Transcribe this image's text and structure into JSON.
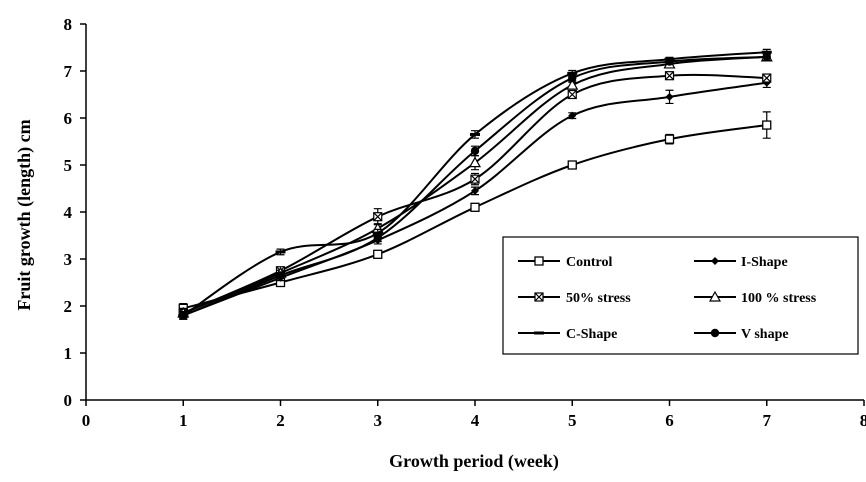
{
  "chart_data": {
    "type": "line",
    "title": "",
    "xlabel": "Growth period (week)",
    "ylabel": "Fruit growth (length) cm",
    "xlim": [
      0,
      8
    ],
    "ylim": [
      0,
      8
    ],
    "x_ticks": [
      "0",
      "1",
      "2",
      "3",
      "4",
      "5",
      "6",
      "7",
      "8"
    ],
    "y_ticks": [
      "0",
      "1",
      "2",
      "3",
      "4",
      "5",
      "6",
      "7",
      "8"
    ],
    "grid": false,
    "legend_position": "lower-right",
    "x": [
      1,
      2,
      3,
      4,
      5,
      6,
      7
    ],
    "series": [
      {
        "name": "Control",
        "marker": "open-square",
        "values": [
          1.95,
          2.5,
          3.1,
          4.1,
          5.0,
          5.55,
          5.85
        ],
        "errors": [
          0.1,
          0.08,
          0.08,
          0.05,
          0.05,
          0.1,
          0.28
        ]
      },
      {
        "name": "I-Shape",
        "marker": "diamond",
        "values": [
          1.8,
          2.6,
          3.4,
          4.45,
          6.05,
          6.45,
          6.75
        ],
        "errors": [
          0.08,
          0.06,
          0.08,
          0.08,
          0.06,
          0.14,
          0.1
        ]
      },
      {
        "name": "50% stress",
        "marker": "x-square",
        "values": [
          1.85,
          2.75,
          3.9,
          4.7,
          6.5,
          6.9,
          6.85
        ],
        "errors": [
          0.1,
          0.06,
          0.17,
          0.12,
          0.06,
          0.04,
          0.06
        ]
      },
      {
        "name": "100 % stress",
        "marker": "open-triangle",
        "values": [
          1.85,
          2.7,
          3.65,
          5.05,
          6.7,
          7.15,
          7.3
        ],
        "errors": [
          0.08,
          0.06,
          0.1,
          0.15,
          0.06,
          0.04,
          0.06
        ]
      },
      {
        "name": "C-Shape",
        "marker": "dash",
        "values": [
          1.8,
          3.15,
          3.55,
          5.65,
          6.95,
          7.25,
          7.4
        ],
        "errors": [
          0.08,
          0.06,
          0.08,
          0.08,
          0.06,
          0.04,
          0.06
        ]
      },
      {
        "name": "V shape",
        "marker": "filled-circle",
        "values": [
          1.8,
          2.65,
          3.45,
          5.3,
          6.85,
          7.2,
          7.3
        ],
        "errors": [
          0.08,
          0.06,
          0.08,
          0.1,
          0.06,
          0.04,
          0.08
        ]
      }
    ]
  }
}
